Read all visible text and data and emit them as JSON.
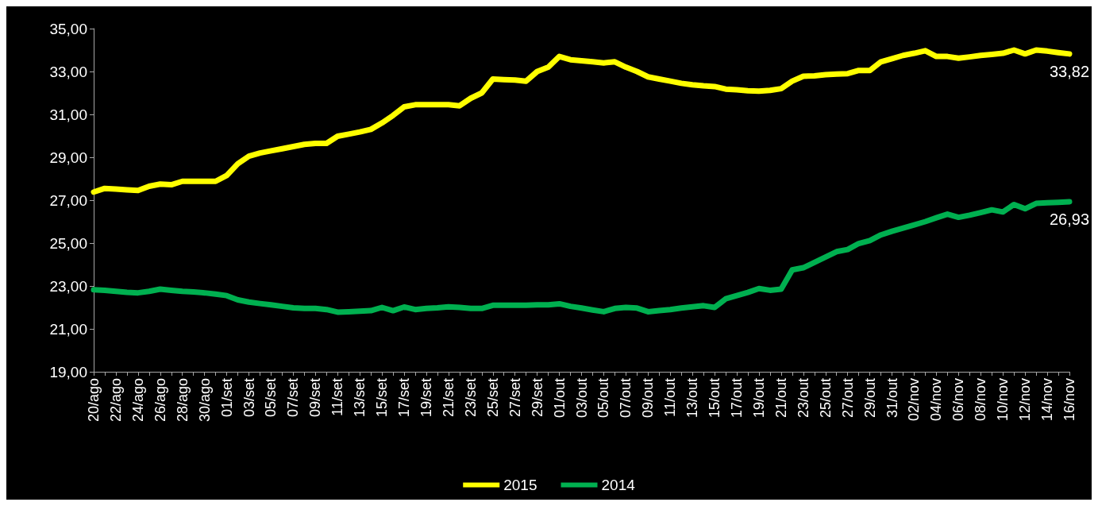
{
  "chart_data": {
    "type": "line",
    "categories": [
      "20/ago",
      null,
      "22/ago",
      null,
      "24/ago",
      null,
      "26/ago",
      null,
      "28/ago",
      null,
      "30/ago",
      null,
      "01/set",
      null,
      "03/set",
      null,
      "05/set",
      null,
      "07/set",
      null,
      "09/set",
      null,
      "11/set",
      null,
      "13/set",
      null,
      "15/set",
      null,
      "17/set",
      null,
      "19/set",
      null,
      "21/set",
      null,
      "23/set",
      null,
      "25/set",
      null,
      "27/set",
      null,
      "29/set",
      null,
      "01/out",
      null,
      "03/out",
      null,
      "05/out",
      null,
      "07/out",
      null,
      "09/out",
      null,
      "11/out",
      null,
      "13/out",
      null,
      "15/out",
      null,
      "17/out",
      null,
      "19/out",
      null,
      "21/out",
      null,
      "23/out",
      null,
      "25/out",
      null,
      "27/out",
      null,
      "29/out",
      null,
      "31/out",
      null,
      "02/nov",
      null,
      "04/nov",
      null,
      "06/nov",
      null,
      "08/nov",
      null,
      "10/nov",
      null,
      "12/nov",
      null,
      "14/nov",
      null,
      "16/nov"
    ],
    "series": [
      {
        "name": "2015",
        "color": "#ffff00",
        "values": [
          27.38,
          27.55,
          27.52,
          27.48,
          27.45,
          27.65,
          27.75,
          27.72,
          27.88,
          27.88,
          27.88,
          27.88,
          28.15,
          28.7,
          29.05,
          29.2,
          29.3,
          29.4,
          29.5,
          29.6,
          29.65,
          29.65,
          29.98,
          30.08,
          30.18,
          30.3,
          30.6,
          30.95,
          31.35,
          31.45,
          31.45,
          31.45,
          31.45,
          31.4,
          31.75,
          32.0,
          32.65,
          32.62,
          32.6,
          32.55,
          33.0,
          33.2,
          33.7,
          33.55,
          33.5,
          33.45,
          33.4,
          33.45,
          33.2,
          33.0,
          32.75,
          32.65,
          32.55,
          32.45,
          32.38,
          32.33,
          32.3,
          32.18,
          32.15,
          32.1,
          32.08,
          32.12,
          32.2,
          32.55,
          32.78,
          32.8,
          32.85,
          32.88,
          32.9,
          33.05,
          33.05,
          33.45,
          33.6,
          33.75,
          33.85,
          33.97,
          33.7,
          33.7,
          33.62,
          33.68,
          33.75,
          33.8,
          33.85,
          34.0,
          33.82,
          34.0,
          33.95,
          33.88,
          33.82
        ],
        "value_labels": [
          null,
          null,
          null,
          null,
          null,
          null,
          null,
          null,
          null,
          null,
          null,
          null,
          null,
          null,
          null,
          null,
          null,
          null,
          null,
          null,
          null,
          null,
          null,
          null,
          null,
          null,
          null,
          null,
          null,
          null,
          null,
          null,
          null,
          null,
          null,
          null,
          null,
          null,
          null,
          null,
          null,
          null,
          null,
          null,
          null,
          null,
          null,
          null,
          null,
          null,
          null,
          null,
          null,
          null,
          null,
          null,
          null,
          null,
          null,
          null,
          null,
          null,
          null,
          null,
          null,
          null,
          null,
          null,
          null,
          null,
          null,
          null,
          null,
          null,
          null,
          null,
          null,
          null,
          null,
          null,
          null,
          null,
          null,
          null,
          null,
          null,
          null,
          null,
          "33,82"
        ]
      },
      {
        "name": "2014",
        "color": "#00b050",
        "values": [
          22.82,
          22.8,
          22.75,
          22.7,
          22.68,
          22.75,
          22.85,
          22.8,
          22.75,
          22.72,
          22.68,
          22.62,
          22.55,
          22.35,
          22.25,
          22.18,
          22.12,
          22.05,
          21.98,
          21.95,
          21.95,
          21.9,
          21.78,
          21.8,
          21.82,
          21.85,
          22.0,
          21.85,
          22.02,
          21.9,
          21.95,
          21.98,
          22.03,
          22.0,
          21.95,
          21.95,
          22.1,
          22.1,
          22.1,
          22.1,
          22.12,
          22.12,
          22.17,
          22.05,
          21.97,
          21.88,
          21.8,
          21.95,
          22.0,
          21.97,
          21.8,
          21.85,
          21.9,
          21.97,
          22.03,
          22.08,
          22.0,
          22.4,
          22.55,
          22.7,
          22.88,
          22.8,
          22.85,
          23.75,
          23.85,
          24.1,
          24.35,
          24.6,
          24.7,
          24.98,
          25.12,
          25.38,
          25.55,
          25.7,
          25.85,
          26.0,
          26.18,
          26.35,
          26.2,
          26.3,
          26.42,
          26.55,
          26.45,
          26.8,
          26.6,
          26.85,
          26.88,
          26.9,
          26.93
        ],
        "value_labels": [
          null,
          null,
          null,
          null,
          null,
          null,
          null,
          null,
          null,
          null,
          null,
          null,
          null,
          null,
          null,
          null,
          null,
          null,
          null,
          null,
          null,
          null,
          null,
          null,
          null,
          null,
          null,
          null,
          null,
          null,
          null,
          null,
          null,
          null,
          null,
          null,
          null,
          null,
          null,
          null,
          null,
          null,
          null,
          null,
          null,
          null,
          null,
          null,
          null,
          null,
          null,
          null,
          null,
          null,
          null,
          null,
          null,
          null,
          null,
          null,
          null,
          null,
          null,
          null,
          null,
          null,
          null,
          null,
          null,
          null,
          null,
          null,
          null,
          null,
          null,
          null,
          null,
          null,
          null,
          null,
          null,
          null,
          null,
          null,
          null,
          null,
          null,
          null,
          "26,93"
        ]
      }
    ],
    "ylim": [
      19,
      35
    ],
    "yticks": [
      {
        "value": 19,
        "label": "19,00"
      },
      {
        "value": 21,
        "label": "21,00"
      },
      {
        "value": 23,
        "label": "23,00"
      },
      {
        "value": 25,
        "label": "25,00"
      },
      {
        "value": 27,
        "label": "27,00"
      },
      {
        "value": 29,
        "label": "29,00"
      },
      {
        "value": 31,
        "label": "31,00"
      },
      {
        "value": 33,
        "label": "33,00"
      },
      {
        "value": 35,
        "label": "35,00"
      }
    ],
    "grid": false,
    "legend": "bottom",
    "marker": "none",
    "line_style": "solid"
  }
}
